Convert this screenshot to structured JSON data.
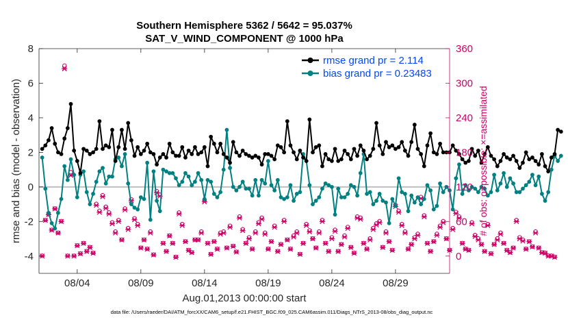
{
  "chart_data": {
    "type": "line",
    "title": "Southern Hemisphere 5362 / 5642 = 95.037%",
    "subtitle": "SAT_V_WIND_COMPONENT @ 1000 hPa",
    "xlabel": "Aug.01,2013 00:00:00 start",
    "ylabel": "rmse and bias (model - observation)",
    "y2label": "# of obs: o=possible; ×=assimilated",
    "xlim": [
      1,
      33.25
    ],
    "ylim": [
      -5,
      8
    ],
    "y2lim": [
      -30,
      360
    ],
    "x_ticks": [
      4,
      9,
      14,
      19,
      24,
      29
    ],
    "x_tick_labels": [
      "08/04",
      "08/09",
      "08/14",
      "08/19",
      "08/24",
      "08/29"
    ],
    "y_ticks": [
      -4,
      -2,
      0,
      2,
      4,
      6,
      8
    ],
    "y_tick_labels": [
      "-4",
      "-2",
      "0",
      "2",
      "4",
      "6",
      "8"
    ],
    "y2_ticks": [
      0,
      60,
      120,
      180,
      240,
      300,
      360
    ],
    "y2_tick_labels": [
      "0",
      "60",
      "120",
      "180",
      "240",
      "300",
      "360"
    ],
    "time_step_days": 0.25,
    "start_day": 1.25,
    "series": [
      {
        "name": "rmse grand pr = 2.114",
        "color": "#000000",
        "axis": "left",
        "values": [
          2.2,
          2.4,
          2.7,
          3.4,
          2.5,
          2.0,
          1.9,
          2.8,
          3.4,
          4.8,
          2.1,
          1.5,
          0.8,
          2.2,
          2.1,
          1.9,
          2.0,
          2.2,
          3.8,
          2.2,
          2.4,
          2.3,
          3.3,
          1.5,
          2.3,
          3.3,
          2.2,
          3.7,
          2.7,
          1.8,
          2.3,
          1.9,
          2.1,
          2.5,
          2.0,
          1.9,
          1.3,
          1.7,
          1.9,
          1.7,
          2.5,
          2.0,
          1.8,
          1.8,
          2.3,
          1.7,
          2.1,
          1.9,
          2.3,
          1.9,
          2.0,
          2.3,
          1.2,
          2.9,
          2.5,
          2.0,
          2.5,
          1.9,
          1.7,
          1.4,
          2.6,
          2.0,
          1.8,
          2.1,
          1.9,
          1.8,
          1.7,
          1.8,
          1.7,
          1.3,
          1.9,
          1.9,
          1.8,
          1.6,
          2.4,
          2.3,
          2.0,
          3.8,
          2.4,
          2.0,
          1.6,
          2.1,
          1.7,
          1.5,
          3.9,
          2.0,
          2.3,
          2.4,
          1.2,
          1.9,
          1.6,
          1.5,
          2.2,
          1.5,
          1.6,
          2.1,
          1.9,
          1.6,
          2.2,
          1.8,
          2.4,
          2.1,
          1.6,
          1.8,
          2.2,
          3.7,
          2.4,
          1.9,
          2.6,
          2.3,
          2.4,
          2.2,
          2.3,
          2.6,
          2.1,
          1.8,
          2.6,
          3.6,
          2.2,
          1.9,
          1.2,
          2.4,
          3.1,
          2.0,
          1.9,
          2.5,
          2.0,
          2.0,
          2.0,
          2.4,
          2.1,
          1.9,
          1.6,
          1.4,
          1.5,
          2.2,
          1.8,
          2.1,
          1.4,
          1.9,
          2.3,
          1.8,
          1.6,
          1.2,
          1.5,
          1.9,
          1.7,
          1.6,
          1.8,
          1.5,
          1.1,
          1.4,
          2.0,
          1.6,
          1.7,
          1.5,
          1.3,
          1.9,
          1.2,
          0.9,
          1.7,
          1.9,
          3.3,
          3.2
        ]
      },
      {
        "name": "bias grand pr = 0.23483",
        "color": "#008080",
        "axis": "left",
        "values": [
          1.7,
          -0.1,
          -1.5,
          -2.1,
          -2.4,
          -1.5,
          -0.7,
          1.2,
          0.4,
          1.6,
          0.7,
          -0.6,
          0.7,
          0.9,
          -0.3,
          -1.0,
          -0.4,
          0.3,
          0.9,
          1.1,
          0.2,
          0.6,
          0.6,
          1.6,
          1.7,
          1.2,
          1.9,
          0.2,
          -1.0,
          -1.2,
          -1.3,
          -0.6,
          -0.7,
          1.4,
          -1.9,
          0.9,
          -0.8,
          -1.4,
          1.0,
          0.9,
          0.8,
          0.8,
          0.5,
          0.1,
          0.3,
          0.8,
          0.6,
          0.1,
          0.3,
          0.8,
          0.4,
          -0.7,
          0.4,
          0.3,
          -0.4,
          -0.6,
          -0.3,
          1.0,
          3.3,
          1.1,
          0.0,
          -0.2,
          0.0,
          0.3,
          -0.1,
          -0.1,
          -0.5,
          0.4,
          -0.5,
          0.4,
          0.2,
          1.5,
          0.1,
          -0.2,
          0.4,
          -0.6,
          -0.7,
          -0.6,
          0.1,
          -0.8,
          -0.4,
          -0.3,
          1.9,
          1.5,
          0.1,
          -1.0,
          -0.8,
          -0.6,
          -0.1,
          0.2,
          0.1,
          0.0,
          -1.6,
          -0.1,
          -0.6,
          -0.6,
          -0.4,
          0.1,
          0.0,
          -0.5,
          0.8,
          1.9,
          -0.4,
          -0.3,
          -1.0,
          -0.8,
          -0.4,
          -0.8,
          -0.9,
          -2.1,
          -0.7,
          -1.1,
          0.5,
          -0.3,
          -0.4,
          -1.4,
          -0.5,
          -0.9,
          -0.6,
          -1.0,
          -0.7,
          0.1,
          -0.2,
          -1.3,
          -1.1,
          0.2,
          -0.3,
          0.0,
          -0.2,
          -1.3,
          0.5,
          1.3,
          -0.4,
          0.1,
          -0.2,
          0.0,
          -0.1,
          -0.3,
          0.0,
          -0.1,
          -0.5,
          -0.3,
          0.7,
          -0.2,
          0.2,
          0.8,
          0.0,
          0.5,
          0.2,
          -0.3,
          -0.3,
          -0.1,
          0.1,
          0.3,
          0.7,
          0.1,
          0.6,
          -0.4,
          -0.8,
          -0.3,
          1.0,
          1.8,
          1.5,
          1.8
        ]
      },
      {
        "name": "possible",
        "color": "#cc0066",
        "axis": "right",
        "marker": "circle",
        "values": [
          0,
          62,
          72,
          45,
          82,
          40,
          60,
          330,
          0,
          145,
          0,
          18,
          4,
          22,
          8,
          15,
          5,
          90,
          78,
          105,
          85,
          75,
          58,
          42,
          62,
          28,
          82,
          48,
          98,
          65,
          55,
          14,
          28,
          12,
          42,
          2,
          112,
          106,
          22,
          8,
          35,
          22,
          -2,
          75,
          55,
          25,
          10,
          6,
          28,
          28,
          42,
          96,
          22,
          3,
          25,
          12,
          40,
          42,
          14,
          52,
          17,
          7,
          68,
          46,
          22,
          32,
          12,
          42,
          58,
          66,
          40,
          12,
          25,
          52,
          8,
          20,
          62,
          28,
          12,
          35,
          42,
          3,
          22,
          55,
          44,
          30,
          14,
          42,
          62,
          22,
          8,
          32,
          45,
          8,
          20,
          35,
          50,
          15,
          5,
          68,
          66,
          22,
          12,
          30,
          48,
          56,
          60,
          15,
          42,
          25,
          10,
          88,
          78,
          55,
          42,
          12,
          20,
          32,
          38,
          102,
          70,
          22,
          8,
          25,
          38,
          52,
          60,
          30,
          10,
          48,
          76,
          68,
          22,
          12,
          10,
          58,
          36,
          30,
          20,
          8,
          55,
          4,
          20,
          30,
          40,
          22,
          10,
          6,
          14,
          62,
          32,
          28,
          12,
          25,
          16,
          42,
          14,
          6,
          5,
          0,
          0,
          -2
        ]
      },
      {
        "name": "assimilated",
        "color": "#cc0066",
        "axis": "right",
        "marker": "cross",
        "values": [
          0,
          62,
          72,
          45,
          82,
          40,
          60,
          325,
          0,
          140,
          0,
          18,
          4,
          22,
          8,
          15,
          5,
          88,
          76,
          103,
          83,
          73,
          56,
          40,
          60,
          28,
          80,
          46,
          96,
          63,
          53,
          14,
          28,
          12,
          40,
          2,
          110,
          104,
          22,
          8,
          35,
          22,
          -2,
          73,
          53,
          25,
          10,
          6,
          28,
          28,
          40,
          94,
          22,
          3,
          25,
          12,
          38,
          40,
          14,
          50,
          17,
          7,
          66,
          44,
          22,
          30,
          12,
          40,
          56,
          64,
          38,
          12,
          25,
          50,
          8,
          20,
          60,
          28,
          12,
          33,
          40,
          3,
          22,
          53,
          42,
          30,
          14,
          40,
          60,
          22,
          8,
          30,
          43,
          8,
          20,
          33,
          48,
          15,
          5,
          66,
          64,
          22,
          12,
          28,
          46,
          54,
          58,
          15,
          40,
          25,
          10,
          86,
          76,
          53,
          40,
          12,
          20,
          30,
          36,
          100,
          68,
          22,
          8,
          25,
          36,
          50,
          58,
          30,
          10,
          46,
          74,
          66,
          22,
          12,
          10,
          56,
          34,
          28,
          20,
          8,
          53,
          4,
          20,
          28,
          38,
          22,
          10,
          6,
          14,
          60,
          30,
          26,
          12,
          25,
          16,
          40,
          14,
          6,
          5,
          0,
          0,
          -2
        ]
      }
    ]
  },
  "footer": {
    "text": "data file: /Users/raeder/DAI/ATM_forcXX/CAM6_setup/f.e21.FHIST_BGC.f09_025.CAM6assim.011/Diags_NTrS_2013-08/obs_diag_output.nc"
  }
}
